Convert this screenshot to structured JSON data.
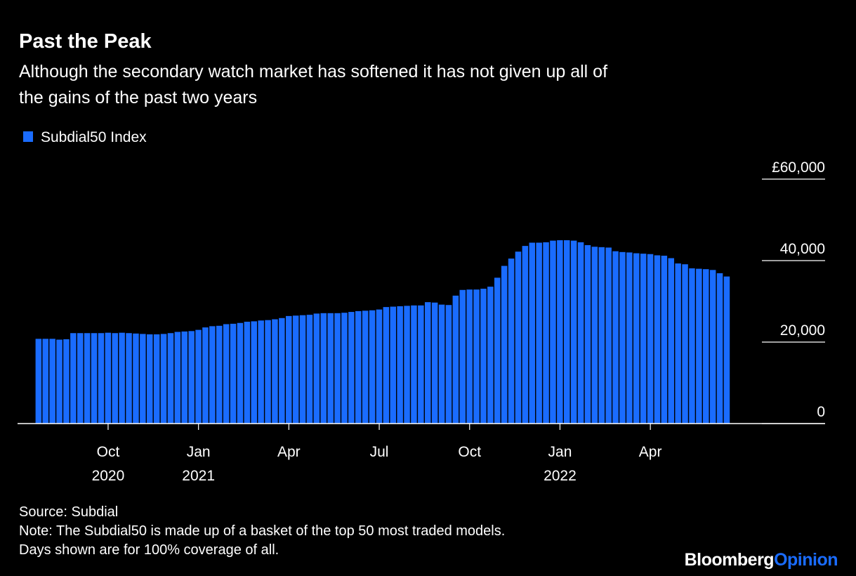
{
  "chart_data": {
    "type": "bar",
    "title": "Past the Peak",
    "subtitle": [
      "Although the secondary watch market has softened it has not given up all of",
      "the gains of the past two years"
    ],
    "series": [
      {
        "name": "Subdial50 Index",
        "color": "#1a6cff",
        "values": [
          20800,
          20800,
          20800,
          20600,
          20700,
          22200,
          22200,
          22200,
          22200,
          22200,
          22300,
          22200,
          22300,
          22200,
          22100,
          22000,
          21900,
          21900,
          22000,
          22200,
          22500,
          22600,
          22700,
          23000,
          23600,
          23900,
          24000,
          24400,
          24500,
          24700,
          25000,
          25100,
          25300,
          25400,
          25600,
          25900,
          26400,
          26500,
          26600,
          26700,
          27000,
          27100,
          27100,
          27100,
          27200,
          27400,
          27600,
          27700,
          27800,
          28000,
          28600,
          28700,
          28800,
          28900,
          29000,
          29000,
          29800,
          29700,
          29200,
          29100,
          31400,
          32800,
          32900,
          32900,
          33100,
          33600,
          35800,
          38700,
          40500,
          42200,
          43600,
          44400,
          44400,
          44500,
          44900,
          45000,
          45000,
          44900,
          44500,
          43800,
          43400,
          43300,
          43200,
          42300,
          42100,
          42000,
          41800,
          41700,
          41600,
          41300,
          41200,
          40600,
          39300,
          39100,
          38100,
          38000,
          37900,
          37700,
          36900,
          36100
        ]
      }
    ],
    "categories": [
      null,
      null,
      null,
      null,
      null,
      null,
      null,
      null,
      null,
      null,
      [
        "Oct",
        "2020"
      ],
      null,
      null,
      null,
      null,
      null,
      null,
      null,
      null,
      null,
      null,
      null,
      null,
      [
        "Jan",
        "2021"
      ],
      null,
      null,
      null,
      null,
      null,
      null,
      null,
      null,
      null,
      null,
      null,
      null,
      [
        "Apr"
      ],
      null,
      null,
      null,
      null,
      null,
      null,
      null,
      null,
      null,
      null,
      null,
      null,
      [
        "Jul"
      ],
      null,
      null,
      null,
      null,
      null,
      null,
      null,
      null,
      null,
      null,
      null,
      null,
      [
        "Oct"
      ],
      null,
      null,
      null,
      null,
      null,
      null,
      null,
      null,
      null,
      null,
      null,
      null,
      [
        "Jan",
        "2022"
      ],
      null,
      null,
      null,
      null,
      null,
      null,
      null,
      null,
      null,
      null,
      null,
      null,
      [
        "Apr"
      ],
      null,
      null,
      null,
      null,
      null,
      null,
      null,
      null,
      null,
      null,
      null
    ],
    "ylim": [
      0,
      60000
    ],
    "yticks": [
      0,
      {
        "value": 20000,
        "label": "20,000"
      },
      {
        "value": 40000,
        "label": "40,000"
      },
      {
        "value": 60000,
        "label": "£60,000"
      }
    ],
    "source": "Source: Subdial",
    "notes": [
      "Note: The Subdial50 is made up of a basket of the top 50 most traded models.",
      "Days shown are for 100% coverage of all."
    ],
    "branding": [
      "Bloomberg",
      "Opinion"
    ]
  }
}
